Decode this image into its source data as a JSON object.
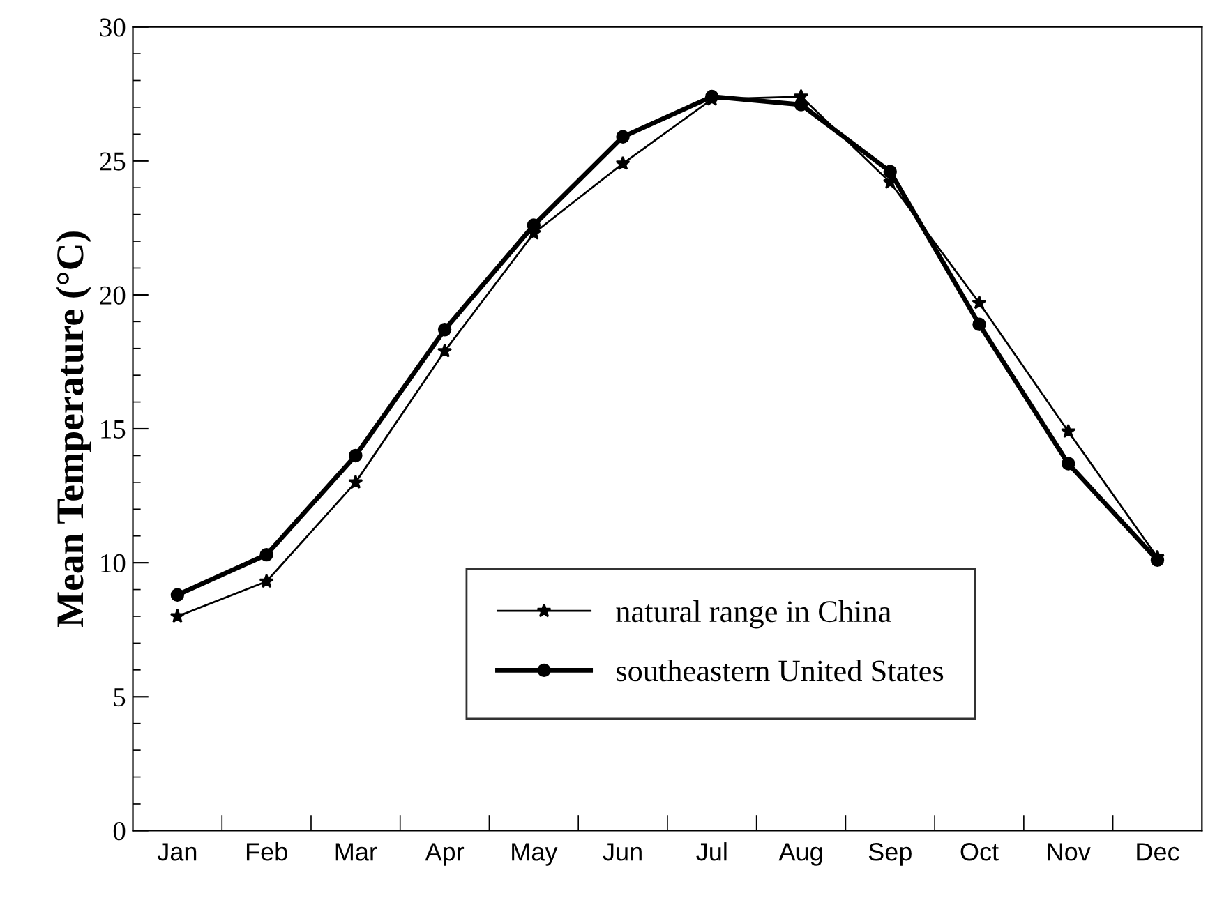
{
  "chart_data": {
    "type": "line",
    "ylabel": "Mean Temperature (°C)",
    "categories": [
      "Jan",
      "Feb",
      "Mar",
      "Apr",
      "May",
      "Jun",
      "Jul",
      "Aug",
      "Sep",
      "Oct",
      "Nov",
      "Dec"
    ],
    "series": [
      {
        "name": "natural range in China",
        "color": "#000000",
        "marker": "star",
        "values": [
          8.0,
          9.3,
          13.0,
          17.9,
          22.3,
          24.9,
          27.3,
          27.4,
          24.2,
          19.7,
          14.9,
          10.2
        ]
      },
      {
        "name": "southeastern United States",
        "color": "#000000",
        "marker": "circle",
        "values": [
          8.8,
          10.3,
          14.0,
          18.7,
          22.6,
          25.9,
          27.4,
          27.1,
          24.6,
          18.9,
          13.7,
          10.1
        ]
      }
    ],
    "ylim": [
      0,
      30
    ],
    "yticks": [
      0,
      5,
      10,
      15,
      20,
      25,
      30
    ],
    "grid": false,
    "legend": "bottom",
    "line_style": "solid"
  }
}
